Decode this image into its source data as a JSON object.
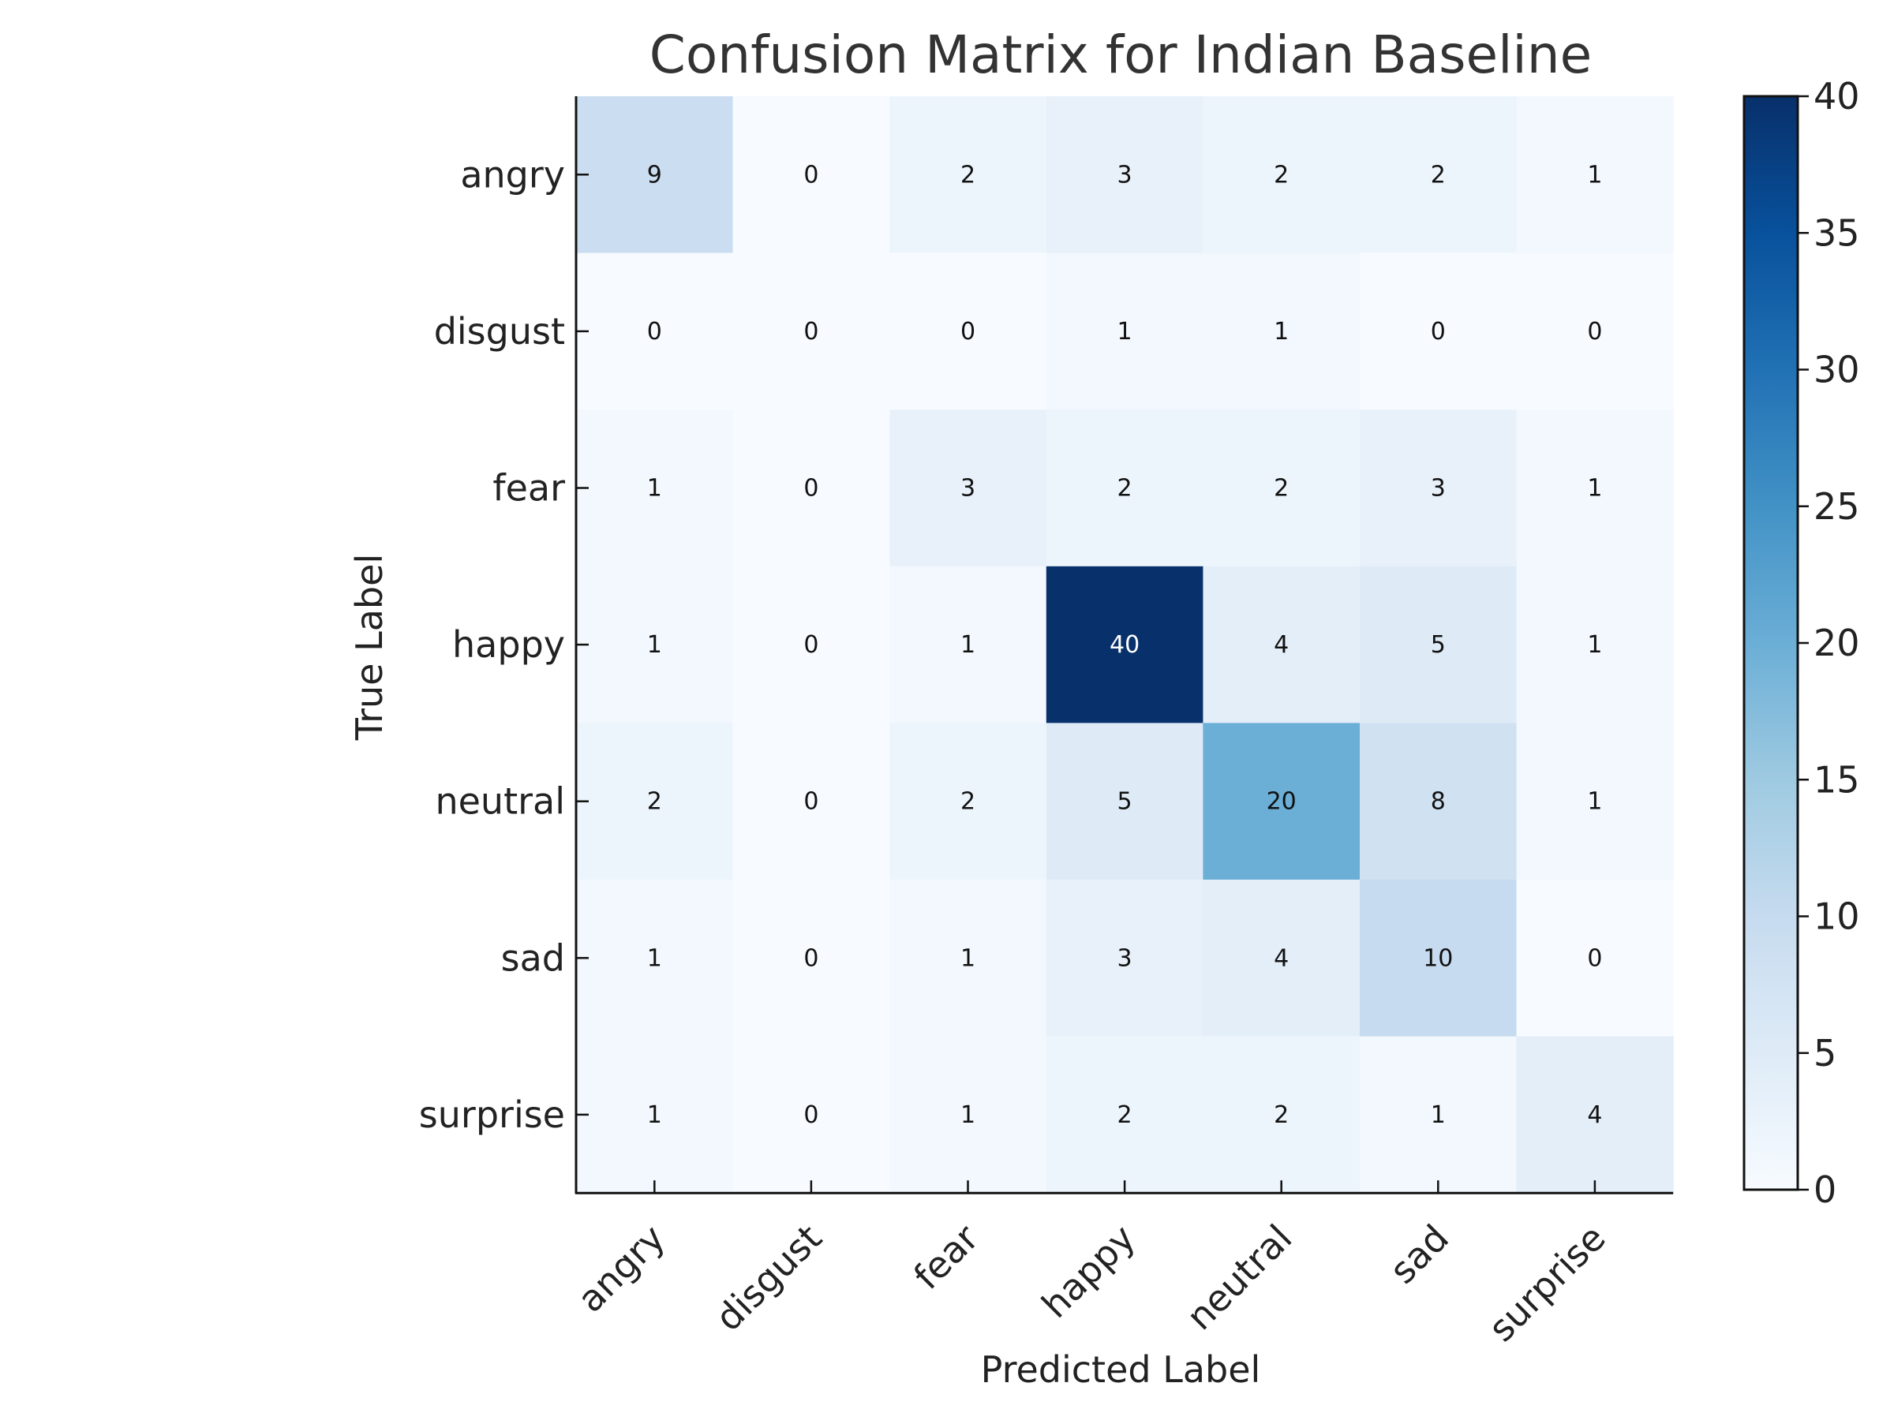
{
  "chart_data": {
    "type": "heatmap",
    "title": "Confusion Matrix for Indian Baseline",
    "xlabel": "Predicted Label",
    "ylabel": "True Label",
    "x_categories": [
      "angry",
      "disgust",
      "fear",
      "happy",
      "neutral",
      "sad",
      "surprise"
    ],
    "y_categories": [
      "angry",
      "disgust",
      "fear",
      "happy",
      "neutral",
      "sad",
      "surprise"
    ],
    "values": [
      [
        9,
        0,
        2,
        3,
        2,
        2,
        1
      ],
      [
        0,
        0,
        0,
        1,
        1,
        0,
        0
      ],
      [
        1,
        0,
        3,
        2,
        2,
        3,
        1
      ],
      [
        1,
        0,
        1,
        40,
        4,
        5,
        1
      ],
      [
        2,
        0,
        2,
        5,
        20,
        8,
        1
      ],
      [
        1,
        0,
        1,
        3,
        4,
        10,
        0
      ],
      [
        1,
        0,
        1,
        2,
        2,
        1,
        4
      ]
    ],
    "colormap": "Blues",
    "colormap_stops": [
      "#f7fbff",
      "#deebf7",
      "#c6dbef",
      "#9ecae1",
      "#6baed6",
      "#4292c6",
      "#2171b5",
      "#08519c",
      "#08306b"
    ],
    "colorbar": {
      "range": [
        0,
        40
      ],
      "ticks": [
        0,
        5,
        10,
        15,
        20,
        25,
        30,
        35,
        40
      ]
    },
    "grid": false
  }
}
